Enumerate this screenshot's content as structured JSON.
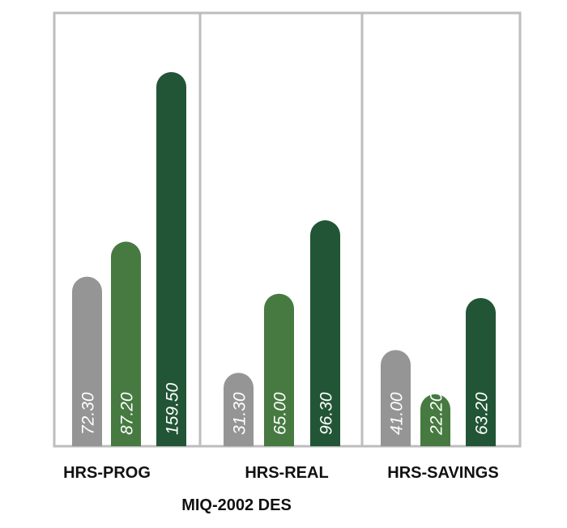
{
  "chart_data": {
    "type": "bar",
    "title": "MIQ-2002 DES",
    "categories": [
      "HRS-PROG",
      "HRS-REAL",
      "HRS-SAVINGS"
    ],
    "groups": [
      {
        "category": "HRS-PROG",
        "values": [
          72.3,
          87.2,
          159.5
        ],
        "labels": [
          "72.30",
          "87.20",
          "159.50"
        ]
      },
      {
        "category": "HRS-REAL",
        "values": [
          31.3,
          65.0,
          96.3
        ],
        "labels": [
          "31.30",
          "65.00",
          "96.30"
        ]
      },
      {
        "category": "HRS-SAVINGS",
        "values": [
          41.0,
          22.2,
          63.2
        ],
        "labels": [
          "41.00",
          "22.20",
          "63.20"
        ]
      }
    ],
    "bar_colors": [
      "#959595",
      "#467a41",
      "#215535"
    ],
    "frame_color": "#bdbdbd",
    "grid": false,
    "legend": "none"
  }
}
